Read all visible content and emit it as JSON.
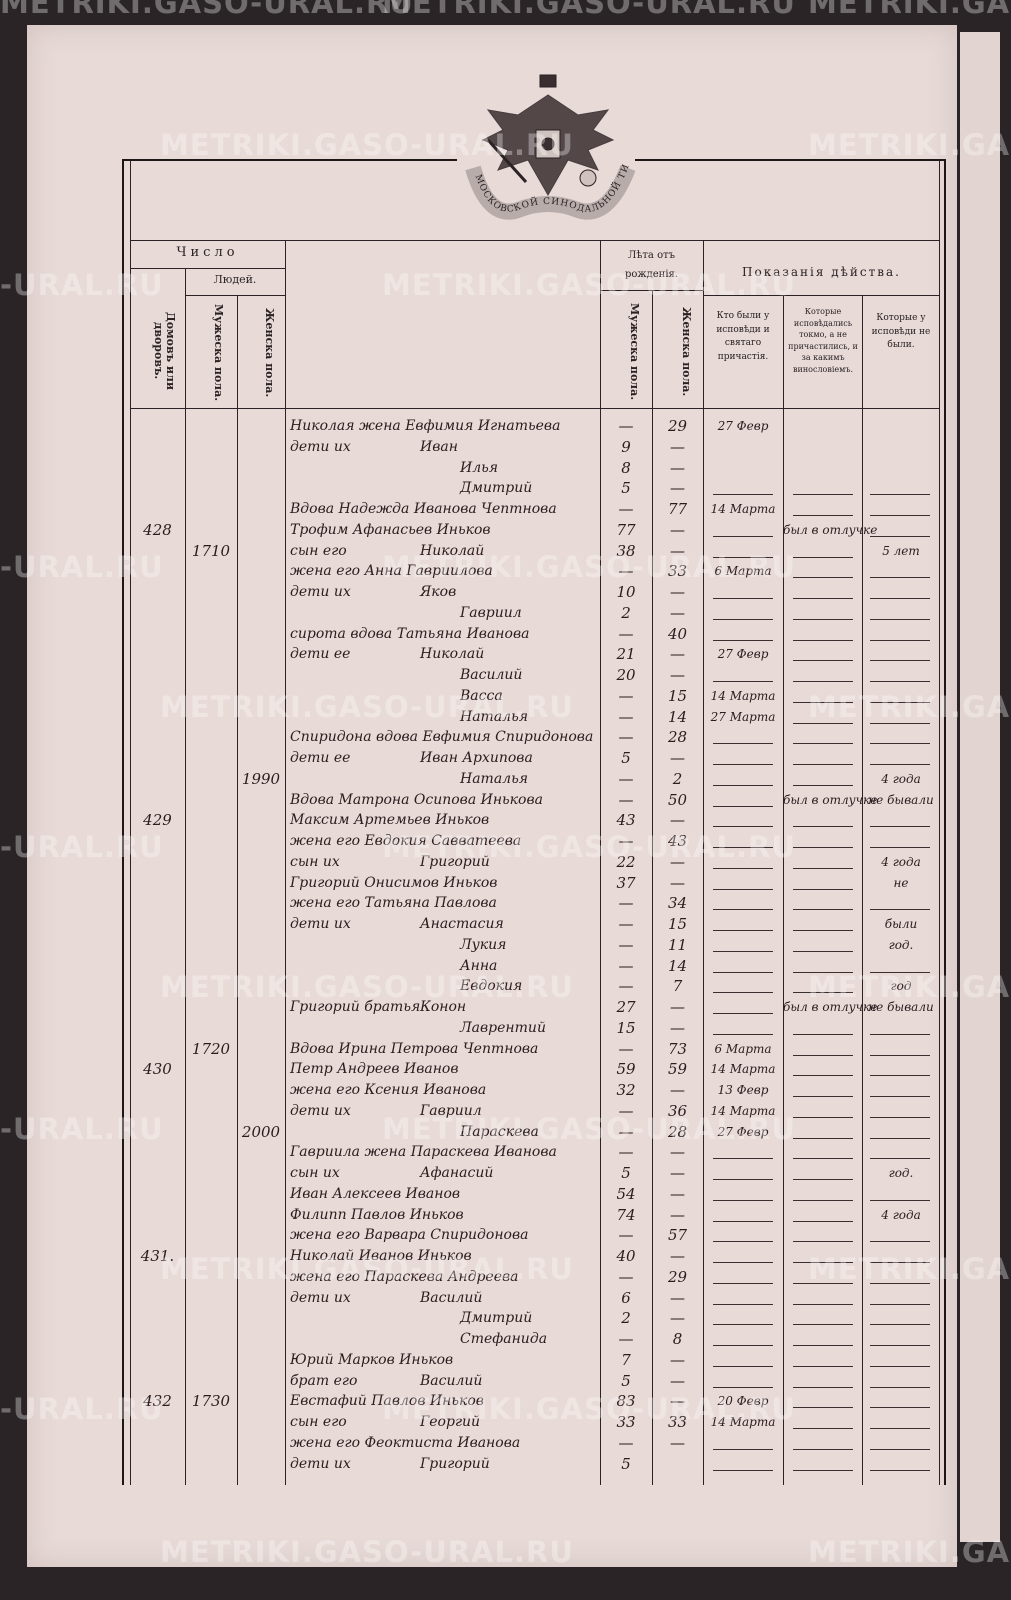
{
  "watermark": "METRIKI.GASO-URAL.RU",
  "watermark_partial": "-URAL.RU",
  "emblem": {
    "ribbon_text": "МОСКОВСКОЙ СИНОДАЛЬНОЙ ТИПОГРАФИИ"
  },
  "header": {
    "chislo": "Число",
    "lyudey": "Людей.",
    "domov": "Домовъ или дворовъ.",
    "male": "Мужеска пола.",
    "female": "Женска пола.",
    "leta": "Лѣта отъ рожденія.",
    "leta_male": "Мужеска пола.",
    "leta_female": "Женска пола.",
    "pokazaniya": "Показанія дѣйства.",
    "col_confessed": "Кто были у исповѣди и святаго причастія.",
    "col_only_confessed": "Которые исповѣдались токмо, а не причастились, и за какимъ винословіемъ.",
    "col_not": "Которые у исповѣди не были."
  },
  "rows": [
    {
      "lead": "Николая жена Евфимия Игнатьева",
      "name": "",
      "m": "—",
      "f": "29",
      "c1": "27 Февр"
    },
    {
      "lead": "дети их",
      "name": "Иван",
      "m": "9",
      "f": "—"
    },
    {
      "lead": "",
      "name": "Илья",
      "m": "8",
      "f": "—"
    },
    {
      "lead": "",
      "name": "Дмитрий",
      "m": "5",
      "f": "—"
    },
    {
      "lead": "Вдова Надежда Иванова Чептнова",
      "name": "",
      "m": "—",
      "f": "77",
      "c1": "14 Марта"
    },
    {
      "household": "428",
      "lead": "Трофим Афанасьев Иньков",
      "name": "",
      "m": "77",
      "f": "—",
      "c2": "был в отлучке"
    },
    {
      "dvor": "1710",
      "lead": "сын его",
      "name": "Николай",
      "m": "38",
      "f": "—",
      "c3": "5 лет"
    },
    {
      "lead": "жена его Анна Гавриилова",
      "name": "",
      "m": "—",
      "f": "33",
      "c1": "6 Марта"
    },
    {
      "lead": "дети их",
      "name": "Яков",
      "m": "10",
      "f": "—"
    },
    {
      "lead": "",
      "name": "Гавриил",
      "m": "2",
      "f": "—"
    },
    {
      "lead": "сирота вдова Татьяна Иванова",
      "name": "",
      "m": "—",
      "f": "40"
    },
    {
      "lead": "дети ее",
      "name": "Николай",
      "m": "21",
      "f": "—",
      "c1": "27 Февр"
    },
    {
      "lead": "",
      "name": "Василий",
      "m": "20",
      "f": "—"
    },
    {
      "lead": "",
      "name": "Васса",
      "m": "—",
      "f": "15",
      "c1": "14 Марта"
    },
    {
      "lead": "",
      "name": "Наталья",
      "m": "—",
      "f": "14",
      "c1": "27 Марта"
    },
    {
      "lead": "Спиридона вдова Евфимия Спиридонова",
      "name": "",
      "m": "—",
      "f": "28"
    },
    {
      "lead": "дети ее",
      "name": "Иван Архипова",
      "m": "5",
      "f": "—"
    },
    {
      "women_total": "1990",
      "lead": "",
      "name": "Наталья",
      "m": "—",
      "f": "2",
      "c3": "4 года"
    },
    {
      "lead": "Вдова Матрона Осипова Инькова",
      "name": "",
      "m": "—",
      "f": "50",
      "c2": "был в отлучке",
      "c3": "не бывали"
    },
    {
      "household": "429",
      "lead": "Максим Артемьев Иньков",
      "name": "",
      "m": "43",
      "f": "—"
    },
    {
      "lead": "жена его Евдокия Савватеева",
      "name": "",
      "m": "—",
      "f": "43"
    },
    {
      "lead": "сын их",
      "name": "Григорий",
      "m": "22",
      "f": "—",
      "c3": "4 года"
    },
    {
      "lead": "Григорий Онисимов Иньков",
      "name": "",
      "m": "37",
      "f": "—",
      "c3": "не"
    },
    {
      "lead": "жена его Татьяна Павлова",
      "name": "",
      "m": "—",
      "f": "34"
    },
    {
      "lead": "дети их",
      "name": "Анастасия",
      "m": "—",
      "f": "15",
      "c3": "были"
    },
    {
      "lead": "",
      "name": "Лукия",
      "m": "—",
      "f": "11",
      "c3": "год."
    },
    {
      "lead": "",
      "name": "Анна",
      "m": "—",
      "f": "14"
    },
    {
      "lead": "",
      "name": "Евдокия",
      "m": "—",
      "f": "7",
      "c3": "год"
    },
    {
      "lead": "Григорий братья",
      "name": "Конон",
      "m": "27",
      "f": "—",
      "c2": "был в отлучке",
      "c3": "не бывали"
    },
    {
      "lead": "",
      "name": "Лаврентий",
      "m": "15",
      "f": "—"
    },
    {
      "dvor": "1720",
      "lead": "Вдова Ирина Петрова Чептнова",
      "name": "",
      "m": "—",
      "f": "73",
      "c1": "6 Марта"
    },
    {
      "household": "430",
      "lead": "Петр Андреев Иванов",
      "name": "",
      "m": "59",
      "f": "59",
      "c1": "14 Марта"
    },
    {
      "lead": "жена его Ксения Иванова",
      "name": "",
      "m": "32",
      "f": "—",
      "c1": "13 Февр"
    },
    {
      "lead": "дети их",
      "name": "Гавриил",
      "m": "—",
      "f": "36",
      "c1": "14 Марта"
    },
    {
      "women_total": "2000",
      "lead": "",
      "name": "Параскева",
      "m": "—",
      "f": "28",
      "c1": "27 Февр"
    },
    {
      "lead": "Гавриила жена Параскева Иванова",
      "name": "",
      "m": "—",
      "f": "—"
    },
    {
      "lead": "сын их",
      "name": "Афанасий",
      "m": "5",
      "f": "—",
      "c3": "год."
    },
    {
      "lead": "Иван Алексеев Иванов",
      "name": "",
      "m": "54",
      "f": "—"
    },
    {
      "lead": "Филипп Павлов Иньков",
      "name": "",
      "m": "74",
      "f": "—",
      "c3": "4 года"
    },
    {
      "lead": "жена его Варвара Спиридонова",
      "name": "",
      "m": "—",
      "f": "57"
    },
    {
      "household": "431.",
      "lead": "Николай Иванов Иньков",
      "name": "",
      "m": "40",
      "f": "—"
    },
    {
      "lead": "жена его Параскева Андреева",
      "name": "",
      "m": "—",
      "f": "29"
    },
    {
      "lead": "дети их",
      "name": "Василий",
      "m": "6",
      "f": "—"
    },
    {
      "lead": "",
      "name": "Дмитрий",
      "m": "2",
      "f": "—"
    },
    {
      "lead": "",
      "name": "Стефанида",
      "m": "—",
      "f": "8"
    },
    {
      "lead": "Юрий Марков Иньков",
      "name": "",
      "m": "7",
      "f": "—"
    },
    {
      "lead": "брат его",
      "name": "Василий",
      "m": "5",
      "f": "—"
    },
    {
      "household": "432",
      "dvor": "1730",
      "lead": "Евстафий Павлов Иньков",
      "name": "",
      "m": "83",
      "f": "—",
      "c1": "20 Февр"
    },
    {
      "lead": "сын его",
      "name": "Георгий",
      "m": "33",
      "f": "33",
      "c1": "14 Марта"
    },
    {
      "lead": "жена его Феоктиста Иванова",
      "name": "",
      "m": "—",
      "f": "—"
    },
    {
      "lead": "дети их",
      "name": "Григорий",
      "m": "5",
      "f": ""
    }
  ]
}
